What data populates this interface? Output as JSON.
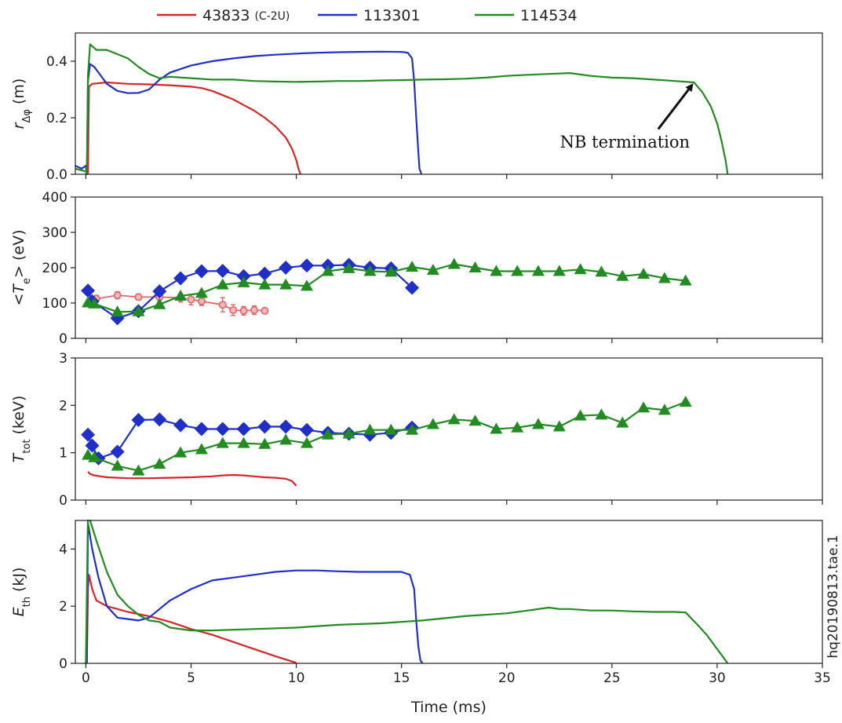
{
  "chart_data": {
    "type": "line",
    "legend": {
      "placement": "top",
      "entries": [
        {
          "label": "43833",
          "suffix": "(C-2U)",
          "color": "#d62728"
        },
        {
          "label": "113301",
          "color": "#1f2fc8"
        },
        {
          "label": "114534",
          "color": "#228b22"
        }
      ]
    },
    "xlabel": "Time (ms)",
    "xlim": [
      -0.5,
      35
    ],
    "xticks": [
      0,
      5,
      10,
      15,
      20,
      25,
      30,
      35
    ],
    "side_label": "hq20190813.tae.1",
    "panels": [
      {
        "key": "r",
        "ylabel": "r_Δφ (m)",
        "ylim": [
          0,
          0.5
        ],
        "yticks": [
          "0.0",
          "0.2",
          "0.4"
        ],
        "ytick_values": [
          0,
          0.2,
          0.4
        ],
        "annotation": {
          "text": "NB termination",
          "text_xy": [
            28.7,
            0.095
          ],
          "arrow_from": [
            27.2,
            0.16
          ],
          "arrow_to": [
            28.8,
            0.315
          ]
        },
        "series": [
          {
            "name": "43833",
            "color": "#d62728",
            "kind": "line",
            "x": [
              0.1,
              0.15,
              0.3,
              1,
              2,
              3,
              4,
              5,
              5.5,
              6,
              6.5,
              7,
              7.5,
              8,
              8.5,
              9,
              9.5,
              9.8,
              10,
              10.1,
              10.2
            ],
            "y": [
              0.0,
              0.31,
              0.32,
              0.325,
              0.32,
              0.318,
              0.315,
              0.31,
              0.305,
              0.295,
              0.28,
              0.265,
              0.245,
              0.225,
              0.2,
              0.17,
              0.13,
              0.09,
              0.05,
              0.02,
              0.0
            ]
          },
          {
            "name": "113301",
            "color": "#1f2fc8",
            "kind": "line",
            "x": [
              -0.5,
              -0.2,
              0,
              0.05,
              0.1,
              0.2,
              0.4,
              0.7,
              1,
              1.5,
              2,
              2.5,
              3,
              3.5,
              4,
              5,
              6,
              7,
              8,
              9,
              10,
              11,
              12,
              13,
              14,
              15,
              15.3,
              15.5,
              15.6,
              15.7,
              15.8,
              15.85,
              15.95
            ],
            "y": [
              0.03,
              0.02,
              0.03,
              0.0,
              0.33,
              0.39,
              0.38,
              0.35,
              0.32,
              0.295,
              0.287,
              0.288,
              0.3,
              0.335,
              0.36,
              0.385,
              0.4,
              0.41,
              0.418,
              0.423,
              0.427,
              0.43,
              0.432,
              0.433,
              0.434,
              0.433,
              0.43,
              0.41,
              0.33,
              0.2,
              0.08,
              0.02,
              0.0
            ]
          },
          {
            "name": "114534",
            "color": "#228b22",
            "kind": "line",
            "x": [
              -0.5,
              0,
              0.05,
              0.1,
              0.2,
              0.5,
              1,
              1.5,
              2,
              2.5,
              3,
              3.5,
              4,
              5,
              6,
              7,
              8,
              9,
              10,
              11,
              12,
              13,
              14,
              15,
              16,
              17,
              18,
              19,
              20,
              21,
              22,
              23,
              24,
              25,
              26,
              27,
              28,
              28.9,
              29.3,
              29.7,
              30,
              30.2,
              30.4,
              30.5
            ],
            "y": [
              0.02,
              0.01,
              0.0,
              0.35,
              0.46,
              0.44,
              0.44,
              0.425,
              0.41,
              0.38,
              0.355,
              0.34,
              0.345,
              0.34,
              0.335,
              0.335,
              0.33,
              0.328,
              0.327,
              0.328,
              0.33,
              0.33,
              0.332,
              0.333,
              0.335,
              0.336,
              0.338,
              0.342,
              0.348,
              0.352,
              0.355,
              0.358,
              0.348,
              0.342,
              0.34,
              0.335,
              0.33,
              0.325,
              0.29,
              0.24,
              0.18,
              0.12,
              0.05,
              0.0
            ]
          }
        ]
      },
      {
        "key": "te",
        "ylabel": "<T_e> (eV)",
        "ylim": [
          0,
          400
        ],
        "yticks": [
          "0",
          "100",
          "200",
          "300",
          "400"
        ],
        "ytick_values": [
          0,
          100,
          200,
          300,
          400
        ],
        "series": [
          {
            "name": "43833",
            "color": "#e06666",
            "kind": "errorbar",
            "marker": "circle",
            "x": [
              0.5,
              1.5,
              2.5,
              3.5,
              4.5,
              5,
              5.5,
              6.5,
              7,
              7.5,
              8,
              8.5
            ],
            "y": [
              112,
              122,
              117,
              117,
              115,
              110,
              105,
              95,
              80,
              78,
              80,
              78
            ],
            "yerr": [
              10,
              10,
              8,
              10,
              12,
              15,
              12,
              20,
              15,
              12,
              12,
              8
            ]
          },
          {
            "name": "113301",
            "color": "#1f2fc8",
            "kind": "line",
            "marker": "diamond",
            "x": [
              0.1,
              0.3,
              1.5,
              2.5,
              3.5,
              4.5,
              5.5,
              6.5,
              7.5,
              8.5,
              9.5,
              10.5,
              11.5,
              12.5,
              13.5,
              14.5,
              15.5
            ],
            "y": [
              135,
              105,
              57,
              77,
              133,
              170,
              190,
              191,
              176,
              183,
              200,
              206,
              206,
              208,
              200,
              198,
              143
            ]
          },
          {
            "name": "114534",
            "color": "#228b22",
            "kind": "line",
            "marker": "triangle",
            "x": [
              0.1,
              0.4,
              1.5,
              2.5,
              3.5,
              4.5,
              5.5,
              6.5,
              7.5,
              8.5,
              9.5,
              10.5,
              11.5,
              12.5,
              13.5,
              14.5,
              15.5,
              16.5,
              17.5,
              18.5,
              19.5,
              20.5,
              21.5,
              22.5,
              23.5,
              24.5,
              25.5,
              26.5,
              27.5,
              28.5
            ],
            "y": [
              101,
              98,
              75,
              76,
              96,
              120,
              128,
              152,
              158,
              152,
              152,
              148,
              190,
              198,
              190,
              188,
              202,
              193,
              210,
              200,
              190,
              190,
              190,
              190,
              195,
              188,
              176,
              182,
              170,
              163
            ]
          }
        ]
      },
      {
        "key": "ttot",
        "ylabel": "T_tot (keV)",
        "ylim": [
          0,
          3
        ],
        "yticks": [
          "0",
          "1",
          "2",
          "3"
        ],
        "ytick_values": [
          0,
          1,
          2,
          3
        ],
        "series": [
          {
            "name": "43833",
            "color": "#d62728",
            "kind": "line",
            "x": [
              0.1,
              0.2,
              0.4,
              0.7,
              1,
              2,
              3,
              4,
              5,
              6,
              6.5,
              7,
              7.5,
              8,
              8.5,
              9,
              9.5,
              9.8,
              10
            ],
            "y": [
              0.6,
              0.55,
              0.52,
              0.5,
              0.48,
              0.46,
              0.46,
              0.47,
              0.48,
              0.5,
              0.52,
              0.53,
              0.52,
              0.5,
              0.48,
              0.47,
              0.45,
              0.4,
              0.3
            ]
          },
          {
            "name": "113301",
            "color": "#1f2fc8",
            "kind": "line",
            "marker": "diamond",
            "x": [
              0.1,
              0.3,
              0.6,
              1.5,
              2.5,
              3.5,
              4.5,
              5.5,
              6.5,
              7.5,
              8.5,
              9.5,
              10.5,
              11.5,
              12.5,
              13.5,
              14.5,
              15.5
            ],
            "y": [
              1.38,
              1.15,
              0.88,
              1.02,
              1.69,
              1.7,
              1.58,
              1.5,
              1.5,
              1.5,
              1.55,
              1.55,
              1.48,
              1.42,
              1.4,
              1.38,
              1.42,
              1.53
            ]
          },
          {
            "name": "114534",
            "color": "#228b22",
            "kind": "line",
            "marker": "triangle",
            "x": [
              0.1,
              0.4,
              1.5,
              2.5,
              3.5,
              4.5,
              5.5,
              6.5,
              7.5,
              8.5,
              9.5,
              10.5,
              11.5,
              12.5,
              13.5,
              14.5,
              15.5,
              16.5,
              17.5,
              18.5,
              19.5,
              20.5,
              21.5,
              22.5,
              23.5,
              24.5,
              25.5,
              26.5,
              27.5,
              28.5
            ],
            "y": [
              0.95,
              0.9,
              0.72,
              0.62,
              0.76,
              1.0,
              1.07,
              1.2,
              1.2,
              1.18,
              1.27,
              1.2,
              1.38,
              1.4,
              1.48,
              1.48,
              1.48,
              1.6,
              1.7,
              1.67,
              1.5,
              1.53,
              1.6,
              1.55,
              1.78,
              1.8,
              1.63,
              1.95,
              1.9,
              2.07
            ]
          }
        ]
      },
      {
        "key": "eth",
        "ylabel": "E_th (kJ)",
        "ylim": [
          0,
          5
        ],
        "yticks": [
          "0",
          "2",
          "4"
        ],
        "ytick_values": [
          0,
          2,
          4
        ],
        "series": [
          {
            "name": "43833",
            "color": "#d62728",
            "kind": "line",
            "x": [
              0.05,
              0.1,
              0.15,
              0.3,
              0.5,
              1,
              1.5,
              2,
              3,
              4,
              5,
              6,
              7,
              8,
              9,
              10
            ],
            "y": [
              0.0,
              2.6,
              3.1,
              2.6,
              2.2,
              2.0,
              1.9,
              1.8,
              1.65,
              1.45,
              1.2,
              1.0,
              0.75,
              0.5,
              0.25,
              0.02
            ]
          },
          {
            "name": "113301",
            "color": "#1f2fc8",
            "kind": "line",
            "x": [
              0.05,
              0.1,
              0.3,
              0.6,
              1,
              1.5,
              2,
              2.5,
              3,
              3.5,
              4,
              5,
              6,
              7,
              8,
              9,
              10,
              11,
              12,
              13,
              14,
              15,
              15.4,
              15.6,
              15.7,
              15.8,
              15.9,
              16
            ],
            "y": [
              0.0,
              4.9,
              4.0,
              3.0,
              2.0,
              1.6,
              1.55,
              1.5,
              1.6,
              1.9,
              2.2,
              2.6,
              2.9,
              3.0,
              3.1,
              3.2,
              3.25,
              3.25,
              3.22,
              3.2,
              3.2,
              3.2,
              3.1,
              2.6,
              1.5,
              0.6,
              0.1,
              0.0
            ]
          },
          {
            "name": "114534",
            "color": "#228b22",
            "kind": "line",
            "x": [
              -0.05,
              0.0,
              0.1,
              0.2,
              0.5,
              1,
              1.5,
              2,
              2.5,
              3,
              3.5,
              4,
              5,
              6,
              8,
              10,
              12,
              14,
              16,
              18,
              20,
              21,
              22,
              22.5,
              23,
              24,
              25,
              26,
              27,
              28,
              28.5,
              29,
              29.5,
              30,
              30.3,
              30.5
            ],
            "y": [
              0.0,
              0.0,
              5.2,
              5.0,
              4.3,
              3.2,
              2.4,
              2.0,
              1.7,
              1.5,
              1.45,
              1.25,
              1.15,
              1.15,
              1.2,
              1.25,
              1.35,
              1.4,
              1.5,
              1.65,
              1.75,
              1.85,
              1.95,
              1.9,
              1.9,
              1.85,
              1.85,
              1.82,
              1.8,
              1.8,
              1.78,
              1.4,
              1.0,
              0.5,
              0.2,
              0.0
            ]
          }
        ]
      }
    ]
  }
}
